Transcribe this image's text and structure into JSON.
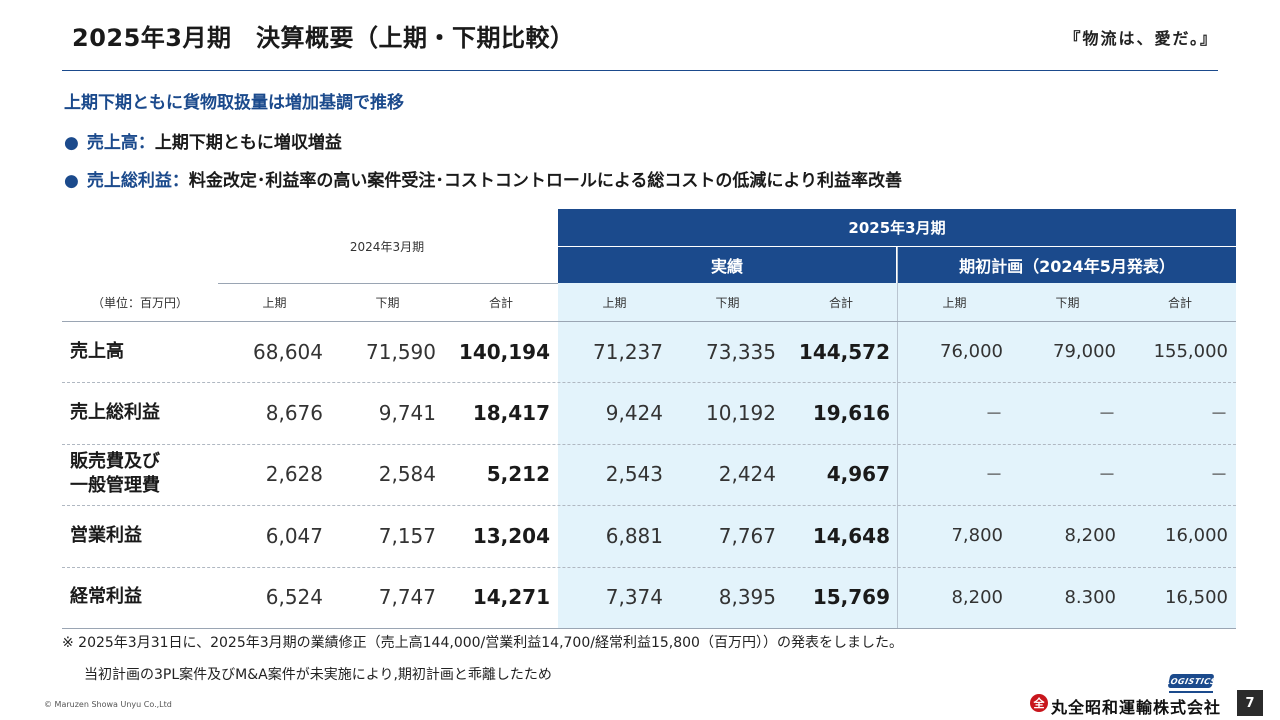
{
  "header": {
    "title": "2025年3月期　決算概要（上期・下期比較）",
    "tagline": "『物流は、愛だ。』"
  },
  "summary": {
    "subhead": "上期下期ともに貨物取扱量は増加基調で推移",
    "bullet_glyph": "●",
    "bullets": [
      {
        "key": "売上高：",
        "text": "上期下期ともに増収増益"
      },
      {
        "key": "売上総利益：",
        "text": "料金改定･利益率の高い案件受注･コストコントロールによる総コストの低減により利益率改善"
      }
    ]
  },
  "table": {
    "period_label": "2025年3月期",
    "prev_label": "2024年3月期",
    "actual_label": "実績",
    "plan_label": "期初計画（2024年5月発表）",
    "unit_label": "（単位：百万円）",
    "col_headers": [
      "上期",
      "下期",
      "合計",
      "上期",
      "下期",
      "合計",
      "上期",
      "下期",
      "合計"
    ],
    "rows": [
      {
        "label": "売上高",
        "values": [
          "68,604",
          "71,590",
          "140,194",
          "71,237",
          "73,335",
          "144,572",
          "76,000",
          "79,000",
          "155,000"
        ]
      },
      {
        "label": "売上総利益",
        "values": [
          "8,676",
          "9,741",
          "18,417",
          "9,424",
          "10,192",
          "19,616",
          "－",
          "－",
          "－"
        ]
      },
      {
        "label": "販売費及び\n一般管理費",
        "label_line1": "販売費及び",
        "label_line2": "一般管理費",
        "values": [
          "2,628",
          "2,584",
          "5,212",
          "2,543",
          "2,424",
          "4,967",
          "－",
          "－",
          "－"
        ]
      },
      {
        "label": "営業利益",
        "values": [
          "6,047",
          "7,157",
          "13,204",
          "6,881",
          "7,767",
          "14,648",
          "7,800",
          "8,200",
          "16,000"
        ]
      },
      {
        "label": "経常利益",
        "values": [
          "6,524",
          "7,747",
          "14,271",
          "7,374",
          "8,395",
          "15,769",
          "8,200",
          "8.300",
          "16,500"
        ]
      }
    ]
  },
  "notes": [
    "※ 2025年3月31日に、2025年3月期の業績修正（売上高144,000/営業利益14,700/経常利益15,800（百万円））の発表をしました。",
    "当初計画の3PL案件及びM&A案件が未実施により,期初計画と乖離したため"
  ],
  "footer": {
    "copyright": "© Maruzen Showa Unyu Co.,Ltd",
    "logo_mark": "LOGISTICS",
    "logo_seal": "全",
    "logo_name": "丸全昭和運輸株式会社",
    "page_number": "7"
  },
  "colors": {
    "primary": "#1b4a8c",
    "highlight_bg": "#e3f3fb",
    "seal_red": "#c8161d"
  }
}
